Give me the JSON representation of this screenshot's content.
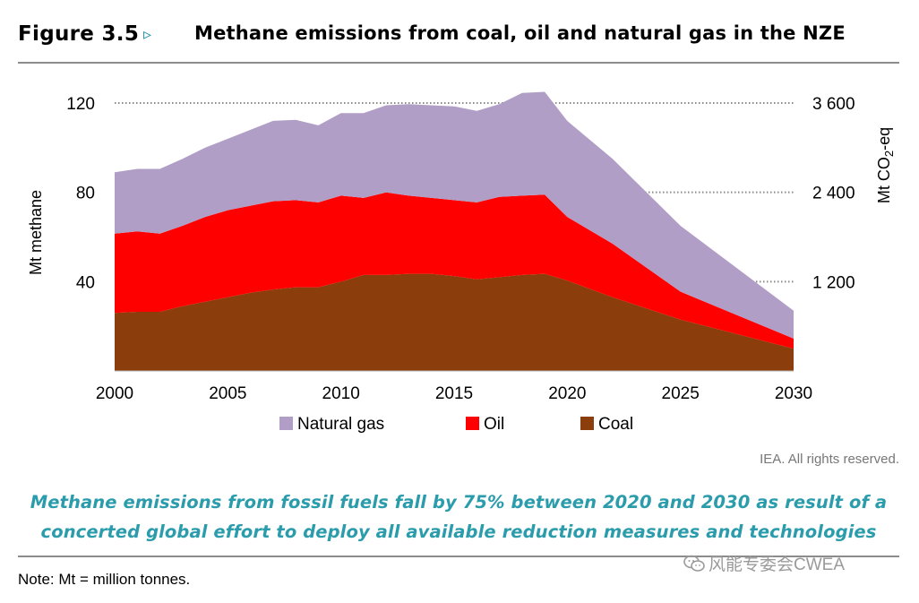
{
  "figure": {
    "label": "Figure 3.5",
    "arrow": "▹",
    "title": "Methane emissions from coal, oil and natural gas in the NZE"
  },
  "chart_data": {
    "type": "area",
    "stacked": true,
    "x": [
      2000,
      2001,
      2002,
      2003,
      2004,
      2005,
      2006,
      2007,
      2008,
      2009,
      2010,
      2011,
      2012,
      2013,
      2014,
      2015,
      2016,
      2017,
      2018,
      2019,
      2020,
      2022,
      2025,
      2030
    ],
    "series": [
      {
        "name": "Coal",
        "color": "#8b3d0b",
        "values": [
          26,
          26.5,
          26.5,
          29,
          31,
          33,
          35,
          36.5,
          37.5,
          37.5,
          40,
          43,
          43,
          43.5,
          43.5,
          42.5,
          41,
          42,
          43,
          43.5,
          40.5,
          33,
          23,
          10
        ]
      },
      {
        "name": "Oil",
        "color": "#ff0000",
        "values": [
          35.5,
          36,
          35,
          36,
          38,
          39,
          39,
          39.5,
          39,
          38,
          38.5,
          34.5,
          37,
          35,
          34,
          34,
          34.5,
          36,
          35.5,
          35.5,
          28.5,
          24,
          12.5,
          4.5
        ]
      },
      {
        "name": "Natural gas",
        "color": "#b19ec6",
        "values": [
          27.5,
          28,
          29,
          30,
          31,
          32,
          34,
          36,
          36,
          34.5,
          37,
          38,
          39,
          41,
          41.5,
          42,
          41,
          41.5,
          46,
          46,
          43,
          38,
          29.5,
          12.5
        ]
      }
    ],
    "xticks": [
      "2000",
      "2005",
      "2010",
      "2015",
      "2020",
      "2025",
      "2030"
    ],
    "xtick_values": [
      2000,
      2005,
      2010,
      2015,
      2020,
      2025,
      2030
    ],
    "xlim": [
      2000,
      2030
    ],
    "ylim": [
      0,
      120
    ],
    "yticks": [
      "40",
      "80",
      "120"
    ],
    "ytick_values": [
      40,
      80,
      120
    ],
    "ylabel": "Mt methane",
    "y2ticks": [
      "1 200",
      "2 400",
      "3 600"
    ],
    "y2label_main": "Mt CO",
    "y2label_sub": "2",
    "y2label_tail": "-eq",
    "legend_position": "bottom",
    "legend": [
      "Natural gas",
      "Oil",
      "Coal"
    ],
    "gridlines": "dotted"
  },
  "rights": "IEA. All rights reserved.",
  "caption": {
    "line1": "Methane emissions from fossil fuels fall by 75% between 2020 and 2030 as result of a",
    "line2": "concerted global effort to deploy all available reduction measures and technologies"
  },
  "note": "Note: Mt = million tonnes.",
  "watermark": "风能专委会CWEA"
}
